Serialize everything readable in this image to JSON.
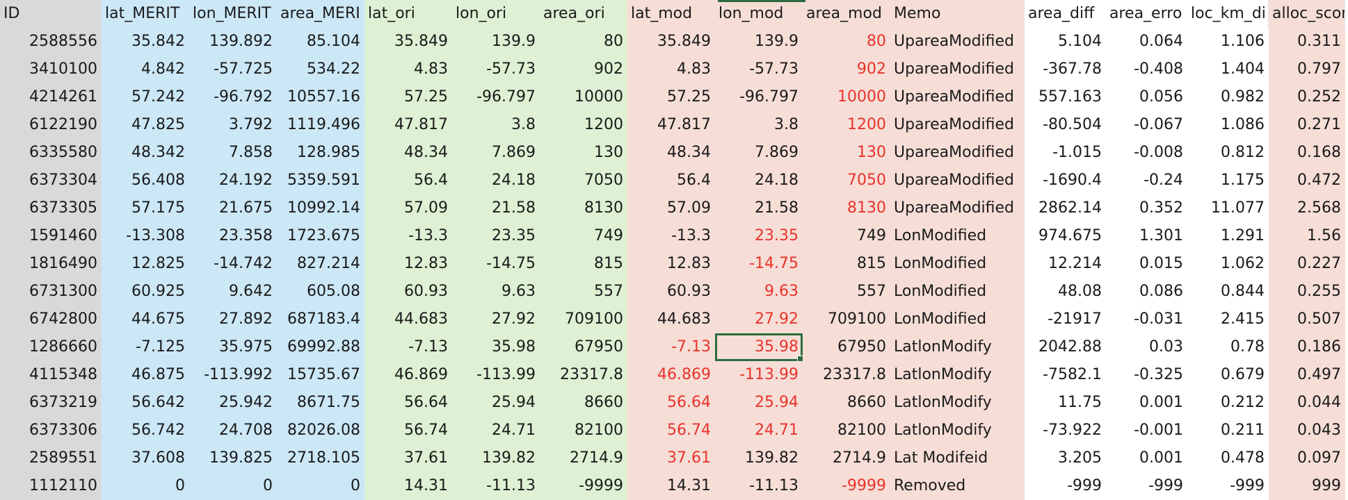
{
  "headers": [
    "ID",
    "lat_MERIT",
    "lon_MERIT",
    "area_MERI",
    "lat_ori",
    "lon_ori",
    "area_ori",
    "lat_mod",
    "lon_mod",
    "area_mod",
    "Memo",
    "area_diff",
    "area_erro",
    "loc_km_di",
    "alloc_scor"
  ],
  "rows": [
    [
      "2588556",
      "35.842",
      "139.892",
      "85.104",
      "35.849",
      "139.9",
      "80",
      "35.849",
      "139.9",
      "80",
      "UpareaModified",
      "5.104",
      "0.064",
      "1.106",
      "0.311"
    ],
    [
      "3410100",
      "4.842",
      "-57.725",
      "534.22",
      "4.83",
      "-57.73",
      "902",
      "4.83",
      "-57.73",
      "902",
      "UpareaModified",
      "-367.78",
      "-0.408",
      "1.404",
      "0.797"
    ],
    [
      "4214261",
      "57.242",
      "-96.792",
      "10557.16",
      "57.25",
      "-96.797",
      "10000",
      "57.25",
      "-96.797",
      "10000",
      "UpareaModified",
      "557.163",
      "0.056",
      "0.982",
      "0.252"
    ],
    [
      "6122190",
      "47.825",
      "3.792",
      "1119.496",
      "47.817",
      "3.8",
      "1200",
      "47.817",
      "3.8",
      "1200",
      "UpareaModified",
      "-80.504",
      "-0.067",
      "1.086",
      "0.271"
    ],
    [
      "6335580",
      "48.342",
      "7.858",
      "128.985",
      "48.34",
      "7.869",
      "130",
      "48.34",
      "7.869",
      "130",
      "UpareaModified",
      "-1.015",
      "-0.008",
      "0.812",
      "0.168"
    ],
    [
      "6373304",
      "56.408",
      "24.192",
      "5359.591",
      "56.4",
      "24.18",
      "7050",
      "56.4",
      "24.18",
      "7050",
      "UpareaModified",
      "-1690.4",
      "-0.24",
      "1.175",
      "0.472"
    ],
    [
      "6373305",
      "57.175",
      "21.675",
      "10992.14",
      "57.09",
      "21.58",
      "8130",
      "57.09",
      "21.58",
      "8130",
      "UpareaModified",
      "2862.14",
      "0.352",
      "11.077",
      "2.568"
    ],
    [
      "1591460",
      "-13.308",
      "23.358",
      "1723.675",
      "-13.3",
      "23.35",
      "749",
      "-13.3",
      "23.35",
      "749",
      "LonModified",
      "974.675",
      "1.301",
      "1.291",
      "1.56"
    ],
    [
      "1816490",
      "12.825",
      "-14.742",
      "827.214",
      "12.83",
      "-14.75",
      "815",
      "12.83",
      "-14.75",
      "815",
      "LonModified",
      "12.214",
      "0.015",
      "1.062",
      "0.227"
    ],
    [
      "6731300",
      "60.925",
      "9.642",
      "605.08",
      "60.93",
      "9.63",
      "557",
      "60.93",
      "9.63",
      "557",
      "LonModified",
      "48.08",
      "0.086",
      "0.844",
      "0.255"
    ],
    [
      "6742800",
      "44.675",
      "27.892",
      "687183.4",
      "44.683",
      "27.92",
      "709100",
      "44.683",
      "27.92",
      "709100",
      "LonModified",
      "-21917",
      "-0.031",
      "2.415",
      "0.507"
    ],
    [
      "1286660",
      "-7.125",
      "35.975",
      "69992.88",
      "-7.13",
      "35.98",
      "67950",
      "-7.13",
      "35.98",
      "67950",
      "LatlonModify",
      "2042.88",
      "0.03",
      "0.78",
      "0.186"
    ],
    [
      "4115348",
      "46.875",
      "-113.992",
      "15735.67",
      "46.869",
      "-113.99",
      "23317.8",
      "46.869",
      "-113.99",
      "23317.8",
      "LatlonModify",
      "-7582.1",
      "-0.325",
      "0.679",
      "0.497"
    ],
    [
      "6373219",
      "56.642",
      "25.942",
      "8671.75",
      "56.64",
      "25.94",
      "8660",
      "56.64",
      "25.94",
      "8660",
      "LatlonModify",
      "11.75",
      "0.001",
      "0.212",
      "0.044"
    ],
    [
      "6373306",
      "56.742",
      "24.708",
      "82026.08",
      "56.74",
      "24.71",
      "82100",
      "56.74",
      "24.71",
      "82100",
      "LatlonModify",
      "-73.922",
      "-0.001",
      "0.211",
      "0.043"
    ],
    [
      "2589551",
      "37.608",
      "139.825",
      "2718.105",
      "37.61",
      "139.82",
      "2714.9",
      "37.61",
      "139.82",
      "2714.9",
      "Lat Modifeid",
      "3.205",
      "0.001",
      "0.478",
      "0.097"
    ],
    [
      "1112110",
      "0",
      "0",
      "0",
      "14.31",
      "-11.13",
      "-9999",
      "14.31",
      "-11.13",
      "-9999",
      "Removed",
      "-999",
      "-999",
      "-999",
      "999"
    ]
  ],
  "red_cells": {
    "0": [
      9
    ],
    "1": [
      9
    ],
    "2": [
      9
    ],
    "3": [
      9
    ],
    "4": [
      9
    ],
    "5": [
      9
    ],
    "6": [
      9
    ],
    "7": [
      8
    ],
    "8": [
      8
    ],
    "9": [
      8
    ],
    "10": [
      8
    ],
    "11": [
      7,
      8
    ],
    "12": [
      7,
      8
    ],
    "13": [
      7,
      8
    ],
    "14": [
      7,
      8
    ],
    "15": [
      7
    ],
    "16": [
      9
    ]
  },
  "selected_cell": {
    "row": 11,
    "col": 8
  },
  "colors": {
    "id_bg": "#d9d9d9",
    "merit_bg": "#cce8f7",
    "ori_bg": "#def1d4",
    "mod_bg": "#f6ded7",
    "modified_text": "#e8332b",
    "selection": "#2e6b3e"
  }
}
